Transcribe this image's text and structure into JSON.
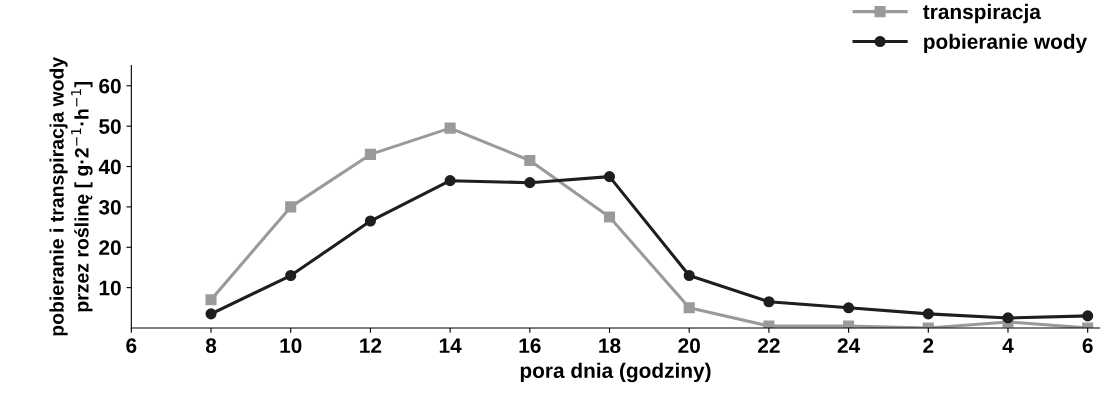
{
  "chart_data": {
    "type": "line",
    "xlabel": "pora dnia (godziny)",
    "ylabel": "pobieranie i transpiracja wody\nprzez roślinę [ g·2$^{−1}$·h$^{−1}$]",
    "categories": [
      "6",
      "8",
      "10",
      "12",
      "14",
      "16",
      "18",
      "20",
      "22",
      "24",
      "2",
      "4",
      "6"
    ],
    "series": [
      {
        "name": "transpiracja",
        "color": "#9a9a9a",
        "marker": "square",
        "values": [
          null,
          7,
          30,
          43,
          49.5,
          41.5,
          27.5,
          5,
          0.5,
          0.5,
          0,
          1.5,
          0
        ]
      },
      {
        "name": "pobieranie wody",
        "color": "#1e1e1e",
        "marker": "circle",
        "values": [
          null,
          3.5,
          13,
          26.5,
          36.5,
          36,
          37.5,
          13,
          6.5,
          5,
          3.5,
          2.5,
          3
        ]
      }
    ],
    "ylim": [
      0,
      65
    ],
    "yticks": [
      10,
      20,
      30,
      40,
      50,
      60
    ],
    "grid": false,
    "legend": "top right",
    "line_style": "solid"
  }
}
